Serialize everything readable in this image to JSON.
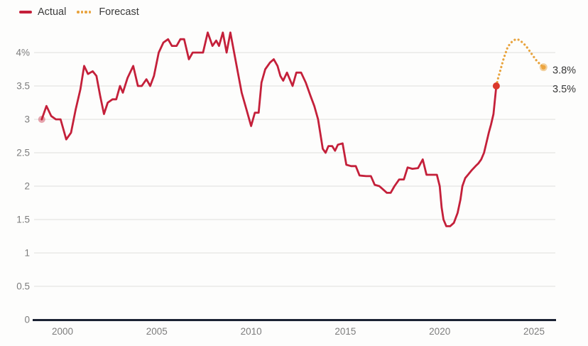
{
  "legend": {
    "actual_label": "Actual",
    "forecast_label": "Forecast"
  },
  "annotations": {
    "forecast_end_label": "3.8%",
    "actual_end_label": "3.5%"
  },
  "colors": {
    "actual": "#c4203a",
    "actual_end_dot": "#db392c",
    "actual_start_dot": "#c4203a",
    "forecast": "#e8a33d",
    "forecast_end_dot": "#eda53f",
    "axis": "#1b2233",
    "grid": "#e5e5e3",
    "tick_text": "#7d7d7d",
    "label_text": "#383838",
    "background": "#fdfdfc"
  },
  "chart_data": {
    "type": "line",
    "title": "",
    "xlabel": "",
    "ylabel": "",
    "grid": "horizontal",
    "legend_position": "top-left",
    "x_axis": {
      "ticks": [
        2000,
        2005,
        2010,
        2015,
        2020,
        2025
      ],
      "range": [
        1998.5,
        2026.1
      ]
    },
    "y_axis": {
      "tick_labels": [
        "4%",
        "3.5",
        "3",
        "2.5",
        "2",
        "1.5",
        "1",
        "0.5",
        "0"
      ],
      "tick_values": [
        4,
        3.5,
        3,
        2.5,
        2,
        1.5,
        1,
        0.5,
        0
      ],
      "range": [
        0,
        4.45
      ]
    },
    "series": [
      {
        "name": "Actual",
        "style": "solid",
        "color": "#c4203a",
        "points": [
          [
            1998.9,
            3.0
          ],
          [
            1999.15,
            3.2
          ],
          [
            1999.4,
            3.05
          ],
          [
            1999.65,
            3.0
          ],
          [
            1999.9,
            3.0
          ],
          [
            2000.2,
            2.7
          ],
          [
            2000.45,
            2.8
          ],
          [
            2000.7,
            3.15
          ],
          [
            2000.95,
            3.45
          ],
          [
            2001.15,
            3.8
          ],
          [
            2001.35,
            3.68
          ],
          [
            2001.6,
            3.72
          ],
          [
            2001.8,
            3.65
          ],
          [
            2002.0,
            3.35
          ],
          [
            2002.2,
            3.08
          ],
          [
            2002.4,
            3.25
          ],
          [
            2002.65,
            3.3
          ],
          [
            2002.85,
            3.3
          ],
          [
            2003.05,
            3.5
          ],
          [
            2003.2,
            3.4
          ],
          [
            2003.45,
            3.62
          ],
          [
            2003.75,
            3.8
          ],
          [
            2004.0,
            3.5
          ],
          [
            2004.2,
            3.5
          ],
          [
            2004.45,
            3.6
          ],
          [
            2004.65,
            3.5
          ],
          [
            2004.85,
            3.65
          ],
          [
            2005.1,
            4.0
          ],
          [
            2005.35,
            4.15
          ],
          [
            2005.6,
            4.2
          ],
          [
            2005.8,
            4.1
          ],
          [
            2006.05,
            4.1
          ],
          [
            2006.25,
            4.2
          ],
          [
            2006.45,
            4.2
          ],
          [
            2006.7,
            3.9
          ],
          [
            2006.9,
            4.0
          ],
          [
            2007.15,
            4.0
          ],
          [
            2007.45,
            4.0
          ],
          [
            2007.7,
            4.3
          ],
          [
            2007.95,
            4.1
          ],
          [
            2008.15,
            4.18
          ],
          [
            2008.3,
            4.1
          ],
          [
            2008.5,
            4.3
          ],
          [
            2008.7,
            4.0
          ],
          [
            2008.9,
            4.3
          ],
          [
            2009.1,
            4.0
          ],
          [
            2009.3,
            3.7
          ],
          [
            2009.5,
            3.4
          ],
          [
            2009.75,
            3.15
          ],
          [
            2010.0,
            2.9
          ],
          [
            2010.2,
            3.1
          ],
          [
            2010.4,
            3.1
          ],
          [
            2010.55,
            3.55
          ],
          [
            2010.75,
            3.75
          ],
          [
            2011.0,
            3.85
          ],
          [
            2011.2,
            3.9
          ],
          [
            2011.4,
            3.8
          ],
          [
            2011.55,
            3.65
          ],
          [
            2011.7,
            3.58
          ],
          [
            2011.9,
            3.7
          ],
          [
            2012.2,
            3.5
          ],
          [
            2012.4,
            3.7
          ],
          [
            2012.65,
            3.7
          ],
          [
            2012.9,
            3.55
          ],
          [
            2013.15,
            3.35
          ],
          [
            2013.35,
            3.2
          ],
          [
            2013.55,
            3.0
          ],
          [
            2013.8,
            2.56
          ],
          [
            2013.95,
            2.5
          ],
          [
            2014.1,
            2.6
          ],
          [
            2014.3,
            2.6
          ],
          [
            2014.45,
            2.53
          ],
          [
            2014.6,
            2.62
          ],
          [
            2014.85,
            2.64
          ],
          [
            2015.05,
            2.32
          ],
          [
            2015.3,
            2.3
          ],
          [
            2015.55,
            2.3
          ],
          [
            2015.75,
            2.16
          ],
          [
            2016.1,
            2.15
          ],
          [
            2016.35,
            2.15
          ],
          [
            2016.55,
            2.02
          ],
          [
            2016.8,
            2.0
          ],
          [
            2017.0,
            1.95
          ],
          [
            2017.2,
            1.9
          ],
          [
            2017.4,
            1.9
          ],
          [
            2017.6,
            2.0
          ],
          [
            2017.85,
            2.1
          ],
          [
            2018.1,
            2.1
          ],
          [
            2018.3,
            2.28
          ],
          [
            2018.55,
            2.26
          ],
          [
            2018.85,
            2.27
          ],
          [
            2019.1,
            2.4
          ],
          [
            2019.3,
            2.17
          ],
          [
            2019.6,
            2.17
          ],
          [
            2019.85,
            2.17
          ],
          [
            2020.0,
            2.0
          ],
          [
            2020.1,
            1.68
          ],
          [
            2020.2,
            1.5
          ],
          [
            2020.35,
            1.4
          ],
          [
            2020.55,
            1.4
          ],
          [
            2020.75,
            1.45
          ],
          [
            2020.95,
            1.6
          ],
          [
            2021.1,
            1.8
          ],
          [
            2021.2,
            2.0
          ],
          [
            2021.35,
            2.12
          ],
          [
            2021.5,
            2.17
          ],
          [
            2021.7,
            2.24
          ],
          [
            2021.9,
            2.3
          ],
          [
            2022.05,
            2.34
          ],
          [
            2022.2,
            2.4
          ],
          [
            2022.35,
            2.5
          ],
          [
            2022.45,
            2.62
          ],
          [
            2022.6,
            2.8
          ],
          [
            2022.72,
            2.92
          ],
          [
            2022.85,
            3.08
          ],
          [
            2023.0,
            3.5
          ]
        ]
      },
      {
        "name": "Forecast",
        "style": "dotted",
        "color": "#e8a33d",
        "points": [
          [
            2023.0,
            3.5
          ],
          [
            2023.1,
            3.62
          ],
          [
            2023.2,
            3.72
          ],
          [
            2023.3,
            3.82
          ],
          [
            2023.4,
            3.92
          ],
          [
            2023.5,
            4.0
          ],
          [
            2023.6,
            4.08
          ],
          [
            2023.75,
            4.14
          ],
          [
            2023.9,
            4.18
          ],
          [
            2024.05,
            4.2
          ],
          [
            2024.2,
            4.19
          ],
          [
            2024.35,
            4.16
          ],
          [
            2024.5,
            4.12
          ],
          [
            2024.65,
            4.07
          ],
          [
            2024.8,
            4.01
          ],
          [
            2024.95,
            3.95
          ],
          [
            2025.1,
            3.89
          ],
          [
            2025.3,
            3.83
          ],
          [
            2025.5,
            3.78
          ]
        ]
      }
    ]
  }
}
